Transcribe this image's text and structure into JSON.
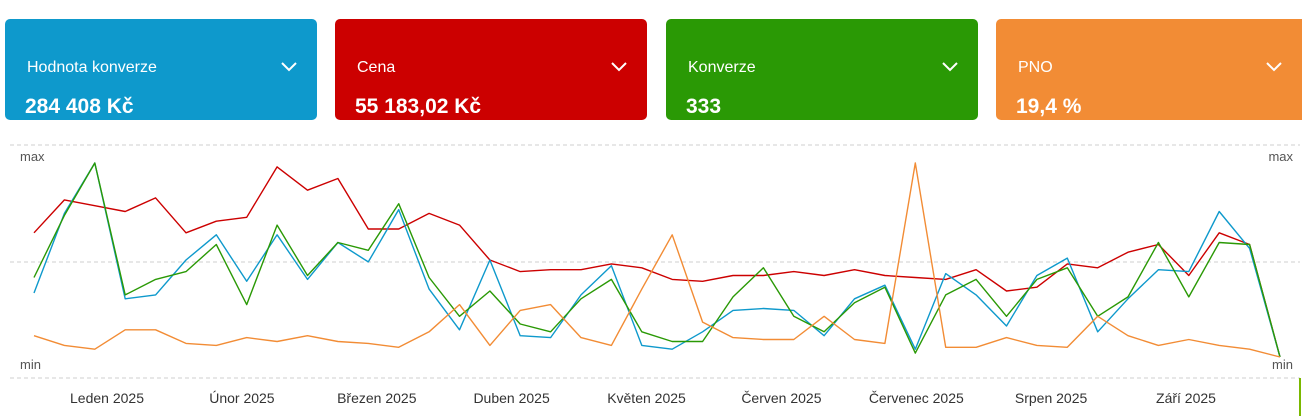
{
  "cards": [
    {
      "label": "Hodnota konverze",
      "value": "284 408 Kč",
      "color": "#0e99cc",
      "icon": "chevron-down-icon"
    },
    {
      "label": "Cena",
      "value": "55 183,02 Kč",
      "color": "#cc0000",
      "icon": "chevron-down-icon"
    },
    {
      "label": "Konverze",
      "value": "333",
      "color": "#2a9905",
      "icon": "chevron-down-icon"
    },
    {
      "label": "PNO",
      "value": "19,4 %",
      "color": "#f28c35",
      "icon": "chevron-down-icon"
    }
  ],
  "chart_data": {
    "type": "line",
    "y_axis_left": {
      "max_label": "max",
      "min_label": "min"
    },
    "y_axis_right": {
      "max_label": "max",
      "min_label": "min"
    },
    "ylim": [
      0,
      1
    ],
    "grid": true,
    "x_ticks": [
      "Leden 2025",
      "Únor 2025",
      "Březen 2025",
      "Duben 2025",
      "Květen 2025",
      "Červen 2025",
      "Červenec 2025",
      "Srpen 2025",
      "Září 2025"
    ],
    "series": [
      {
        "color": "#cc0000",
        "values": [
          0.64,
          0.81,
          0.78,
          0.75,
          0.82,
          0.64,
          0.7,
          0.72,
          0.98,
          0.86,
          0.92,
          0.66,
          0.66,
          0.74,
          0.68,
          0.5,
          0.44,
          0.45,
          0.45,
          0.48,
          0.46,
          0.4,
          0.39,
          0.42,
          0.42,
          0.44,
          0.42,
          0.45,
          0.42,
          0.41,
          0.4,
          0.45,
          0.34,
          0.36,
          0.48,
          0.46,
          0.54,
          0.58,
          0.42,
          0.64,
          0.58,
          0.0
        ]
      },
      {
        "color": "#0e99cc",
        "values": [
          0.33,
          0.74,
          1.0,
          0.3,
          0.32,
          0.5,
          0.63,
          0.39,
          0.63,
          0.4,
          0.59,
          0.49,
          0.76,
          0.35,
          0.14,
          0.5,
          0.11,
          0.1,
          0.32,
          0.47,
          0.06,
          0.04,
          0.13,
          0.24,
          0.25,
          0.24,
          0.11,
          0.3,
          0.37,
          0.04,
          0.43,
          0.32,
          0.16,
          0.42,
          0.51,
          0.13,
          0.3,
          0.45,
          0.44,
          0.75,
          0.56,
          0.0
        ]
      },
      {
        "color": "#2a9905",
        "values": [
          0.41,
          0.73,
          1.0,
          0.32,
          0.4,
          0.44,
          0.58,
          0.27,
          0.68,
          0.42,
          0.59,
          0.55,
          0.79,
          0.41,
          0.21,
          0.34,
          0.17,
          0.13,
          0.3,
          0.4,
          0.13,
          0.08,
          0.08,
          0.31,
          0.46,
          0.21,
          0.13,
          0.28,
          0.36,
          0.02,
          0.32,
          0.4,
          0.21,
          0.4,
          0.46,
          0.21,
          0.31,
          0.59,
          0.31,
          0.59,
          0.58,
          0.0
        ]
      },
      {
        "color": "#f28c35",
        "values": [
          0.11,
          0.06,
          0.04,
          0.14,
          0.14,
          0.07,
          0.06,
          0.1,
          0.08,
          0.11,
          0.08,
          0.07,
          0.05,
          0.13,
          0.27,
          0.06,
          0.24,
          0.27,
          0.1,
          0.06,
          0.35,
          0.63,
          0.18,
          0.1,
          0.09,
          0.09,
          0.21,
          0.09,
          0.07,
          1.0,
          0.05,
          0.05,
          0.1,
          0.06,
          0.05,
          0.21,
          0.11,
          0.06,
          0.09,
          0.06,
          0.04,
          0.0
        ]
      }
    ]
  }
}
